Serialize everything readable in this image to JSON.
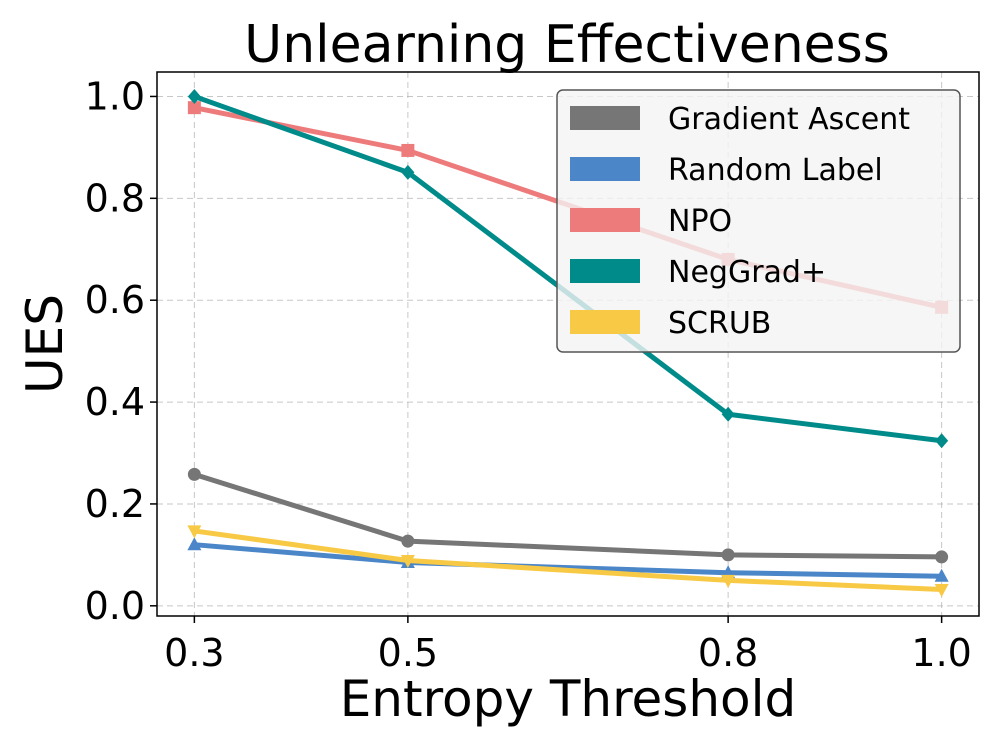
{
  "chart_data": {
    "type": "line",
    "title": "Unlearning Effectiveness",
    "xlabel": "Entropy Threshold",
    "ylabel": "UES",
    "x": [
      0.3,
      0.5,
      0.8,
      1.0
    ],
    "x_tick_labels": [
      "0.3",
      "0.5",
      "0.8",
      "1.0"
    ],
    "y_ticks": [
      0.0,
      0.2,
      0.4,
      0.6,
      0.8,
      1.0
    ],
    "y_tick_labels": [
      "0.0",
      "0.2",
      "0.4",
      "0.6",
      "0.8",
      "1.0"
    ],
    "xlim": [
      0.265,
      1.035
    ],
    "ylim": [
      -0.02,
      1.048
    ],
    "grid": true,
    "legend_position": "top-right",
    "series": [
      {
        "name": "Gradient Ascent",
        "values": [
          0.258,
          0.127,
          0.1,
          0.096
        ],
        "color": "#767676",
        "marker": "circle"
      },
      {
        "name": "Random Label",
        "values": [
          0.12,
          0.085,
          0.065,
          0.058
        ],
        "color": "#4a86c8",
        "marker": "triangle-up"
      },
      {
        "name": "NPO",
        "values": [
          0.978,
          0.894,
          0.68,
          0.586
        ],
        "color": "#ee7b7b",
        "marker": "square"
      },
      {
        "name": "NegGrad+",
        "values": [
          1.0,
          0.851,
          0.376,
          0.324
        ],
        "color": "#008b8b",
        "marker": "diamond"
      },
      {
        "name": "SCRUB",
        "values": [
          0.147,
          0.089,
          0.05,
          0.032
        ],
        "color": "#f8c945",
        "marker": "triangle-down"
      }
    ]
  }
}
